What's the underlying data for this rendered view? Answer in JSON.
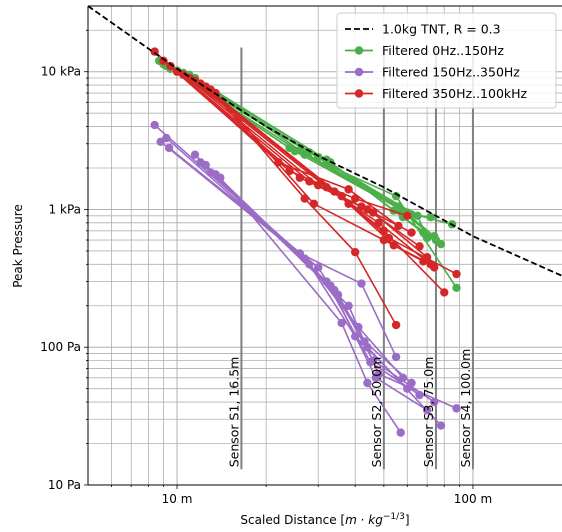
{
  "chart_data": {
    "type": "line",
    "xscale": "log",
    "yscale": "log",
    "xlim": [
      5,
      200
    ],
    "ylim": [
      10,
      30000
    ],
    "xlabel": "Scaled Distance [m·kg⁻¹ᐟ³]",
    "xlabel_parts": {
      "main": "Scaled Distance [",
      "m": "m",
      "dot": " · ",
      "kg": "kg",
      "exp": "−1/3",
      "close": "]"
    },
    "ylabel": "Peak Pressure",
    "xticks": [
      {
        "value": 10,
        "label": "10 m"
      },
      {
        "value": 100,
        "label": "100 m"
      }
    ],
    "yticks": [
      {
        "value": 10,
        "label": "10 Pa"
      },
      {
        "value": 100,
        "label": "100 Pa"
      },
      {
        "value": 1000,
        "label": "1 kPa"
      },
      {
        "value": 10000,
        "label": "10 kPa"
      }
    ],
    "grid": "major and minor",
    "legend_position": "top-right",
    "reference_curve": {
      "name": "1.0kg TNT, R = 0.3",
      "style": "dashed",
      "color": "#000000",
      "points": [
        [
          5,
          30000
        ],
        [
          10,
          10500
        ],
        [
          20,
          4000
        ],
        [
          30,
          2450
        ],
        [
          50,
          1450
        ],
        [
          100,
          640
        ],
        [
          200,
          330
        ]
      ]
    },
    "sensors": [
      {
        "label": "Sensor S1, 16.5m",
        "x": 16.5,
        "y_top": 15000,
        "y_bottom": 13
      },
      {
        "label": "Sensor S2, 50.0m",
        "x": 50,
        "y_top": 15000,
        "y_bottom": 13
      },
      {
        "label": "Sensor S3, 75.0m",
        "x": 75,
        "y_top": 15000,
        "y_bottom": 13
      },
      {
        "label": "Sensor S4, 100.0m",
        "x": 100,
        "y_top": 15000,
        "y_bottom": 13
      }
    ],
    "series": [
      {
        "name": "Filtered 0Hz..150Hz",
        "color": "#4daf4a",
        "segments": [
          [
            [
              8.7,
              12000
            ],
            [
              24,
              2800
            ],
            [
              55,
              1250
            ],
            [
              88,
              270
            ]
          ],
          [
            [
              9.0,
              11300
            ],
            [
              25,
              2650
            ],
            [
              57,
              1000
            ],
            [
              78,
              560
            ]
          ],
          [
            [
              9.2,
              11000
            ],
            [
              27,
              2500
            ],
            [
              60,
              950
            ],
            [
              85,
              780
            ]
          ],
          [
            [
              9.5,
              10500
            ],
            [
              28,
              2600
            ],
            [
              62,
              920
            ],
            [
              72,
              880
            ]
          ],
          [
            [
              10.0,
              10200
            ],
            [
              30,
              2400
            ],
            [
              65,
              900
            ],
            [
              70,
              620
            ]
          ],
          [
            [
              10.5,
              9800
            ],
            [
              32,
              2300
            ],
            [
              58,
              880
            ],
            [
              75,
              600
            ]
          ],
          [
            [
              11.0,
              9500
            ],
            [
              33,
              2200
            ],
            [
              54,
              980
            ],
            [
              68,
              680
            ]
          ],
          [
            [
              11.5,
              9000
            ],
            [
              26,
              2700
            ],
            [
              56,
              1050
            ],
            [
              74,
              640
            ]
          ]
        ]
      },
      {
        "name": "Filtered 150Hz..350Hz",
        "color": "#9b6dc6",
        "segments": [
          [
            [
              8.4,
              4100
            ],
            [
              26,
              480
            ],
            [
              42,
              290
            ],
            [
              55,
              85
            ]
          ],
          [
            [
              8.8,
              3100
            ],
            [
              27,
              440
            ],
            [
              41,
              140
            ],
            [
              58,
              60
            ]
          ],
          [
            [
              9.2,
              3300
            ],
            [
              28,
              400
            ],
            [
              40,
              120
            ],
            [
              60,
              50
            ]
          ],
          [
            [
              9.4,
              2800
            ],
            [
              30,
              380
            ],
            [
              43,
              110
            ],
            [
              62,
              55
            ]
          ],
          [
            [
              11.5,
              2500
            ],
            [
              32,
              300
            ],
            [
              45,
              78
            ],
            [
              66,
              45
            ]
          ],
          [
            [
              12.0,
              2200
            ],
            [
              33,
              280
            ],
            [
              47,
              60
            ],
            [
              70,
              35
            ]
          ],
          [
            [
              12.5,
              2100
            ],
            [
              34,
              260
            ],
            [
              46,
              80
            ],
            [
              74,
              40
            ]
          ],
          [
            [
              13.0,
              1850
            ],
            [
              35,
              240
            ],
            [
              44,
              100
            ],
            [
              78,
              27
            ]
          ],
          [
            [
              13.5,
              1800
            ],
            [
              38,
              200
            ],
            [
              48,
              64
            ],
            [
              88,
              36
            ]
          ],
          [
            [
              14.0,
              1700
            ],
            [
              36,
              150
            ],
            [
              44,
              55
            ],
            [
              57,
              24
            ]
          ]
        ]
      },
      {
        "name": "Filtered 350Hz..100kHz",
        "color": "#d62728",
        "segments": [
          [
            [
              8.4,
              14000
            ],
            [
              22,
              2200
            ],
            [
              38,
              1400
            ],
            [
              56,
              760
            ]
          ],
          [
            [
              9.0,
              12000
            ],
            [
              24,
              1900
            ],
            [
              40,
              1200
            ],
            [
              60,
              900
            ]
          ],
          [
            [
              9.5,
              11000
            ],
            [
              26,
              1700
            ],
            [
              42,
              1050
            ],
            [
              62,
              680
            ]
          ],
          [
            [
              10.0,
              10000
            ],
            [
              28,
              1600
            ],
            [
              44,
              1000
            ],
            [
              66,
              540
            ]
          ],
          [
            [
              10.5,
              9500
            ],
            [
              30,
              1500
            ],
            [
              46,
              950
            ],
            [
              70,
              450
            ]
          ],
          [
            [
              11.0,
              9000
            ],
            [
              32,
              1450
            ],
            [
              48,
              800
            ],
            [
              74,
              380
            ]
          ],
          [
            [
              11.5,
              8600
            ],
            [
              34,
              1350
            ],
            [
              50,
              700
            ],
            [
              80,
              250
            ]
          ],
          [
            [
              12.0,
              8200
            ],
            [
              36,
              1250
            ],
            [
              52,
              620
            ],
            [
              88,
              340
            ]
          ],
          [
            [
              12.5,
              7800
            ],
            [
              38,
              1100
            ],
            [
              54,
              550
            ],
            [
              72,
              400
            ]
          ],
          [
            [
              13.0,
              7400
            ],
            [
              27,
              1200
            ],
            [
              40,
              490
            ],
            [
              55,
              145
            ]
          ],
          [
            [
              13.5,
              7000
            ],
            [
              29,
              1100
            ],
            [
              50,
              600
            ],
            [
              68,
              420
            ]
          ]
        ]
      }
    ]
  },
  "legend": [
    {
      "name": "1.0kg TNT, R = 0.3",
      "color": "#000000",
      "dashed": true
    },
    {
      "name": "Filtered 0Hz..150Hz",
      "color": "#4daf4a",
      "dashed": false
    },
    {
      "name": "Filtered 150Hz..350Hz",
      "color": "#9b6dc6",
      "dashed": false
    },
    {
      "name": "Filtered 350Hz..100kHz",
      "color": "#d62728",
      "dashed": false
    }
  ]
}
